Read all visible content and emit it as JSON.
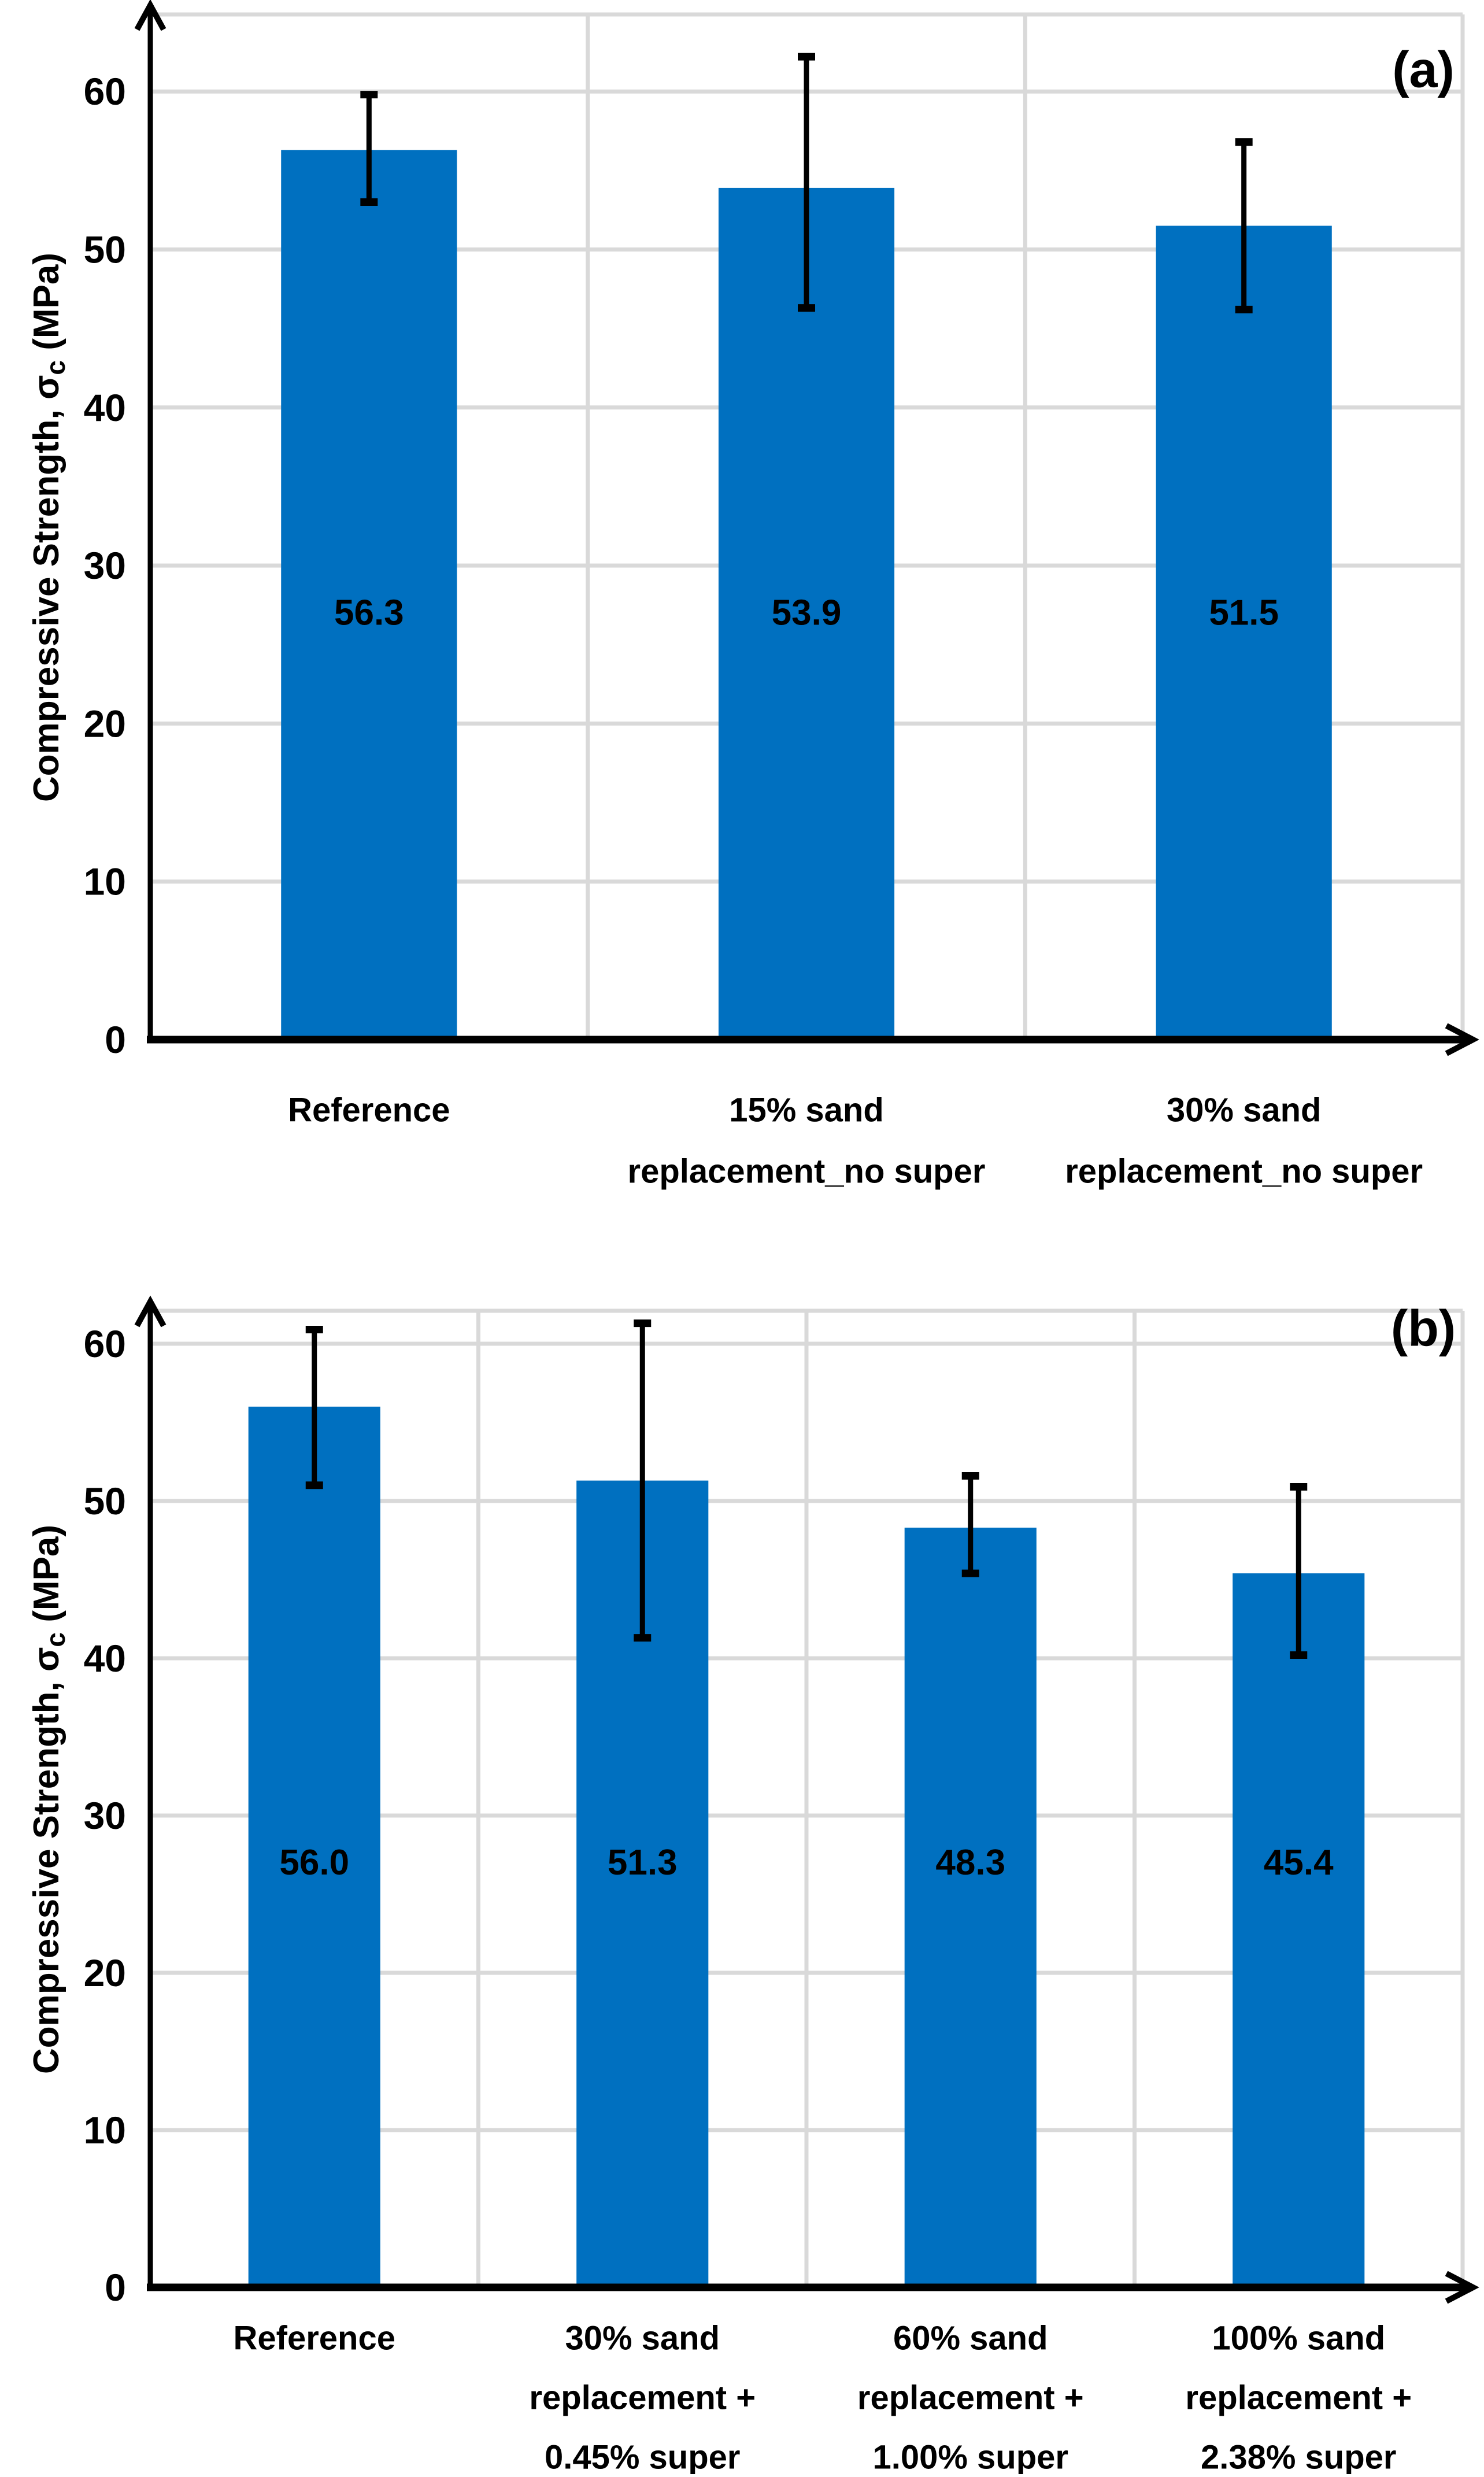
{
  "chart_data": {
    "type": "bar",
    "ylabel_prefix": "Compressive Strength, σ",
    "ylabel_sub": "c",
    "ylabel_suffix": " (MPa)",
    "bar_color": "#0070C0",
    "gridline_color": "#D9D9D9",
    "axis_color": "#000000",
    "legend_position": "none",
    "grid": "on",
    "charts": [
      {
        "panel_label": "(a)",
        "ylim": [
          0,
          65
        ],
        "yticks": [
          "0",
          "10",
          "20",
          "30",
          "40",
          "50",
          "60"
        ],
        "categories": [
          [
            "Reference"
          ],
          [
            "15% sand",
            "replacement_no super"
          ],
          [
            "30% sand",
            "replacement_no super"
          ]
        ],
        "values": [
          56.3,
          53.9,
          51.5
        ],
        "value_labels": [
          "56.3",
          "53.9",
          "51.5"
        ],
        "error_high": [
          59.8,
          62.2,
          56.8
        ],
        "error_low": [
          53.0,
          46.3,
          46.2
        ]
      },
      {
        "panel_label": "(b)",
        "ylim": [
          0,
          62
        ],
        "yticks": [
          "0",
          "10",
          "20",
          "30",
          "40",
          "50",
          "60"
        ],
        "categories": [
          [
            "Reference"
          ],
          [
            "30% sand",
            "replacement +",
            "0.45% super"
          ],
          [
            "60% sand",
            "replacement +",
            "1.00% super"
          ],
          [
            "100% sand",
            "replacement +",
            "2.38% super"
          ]
        ],
        "values": [
          56.0,
          51.3,
          48.3,
          45.4
        ],
        "value_labels": [
          "56.0",
          "51.3",
          "48.3",
          "45.4"
        ],
        "error_high": [
          60.9,
          61.3,
          51.6,
          50.9
        ],
        "error_low": [
          51.0,
          41.3,
          45.4,
          40.2
        ]
      }
    ]
  }
}
